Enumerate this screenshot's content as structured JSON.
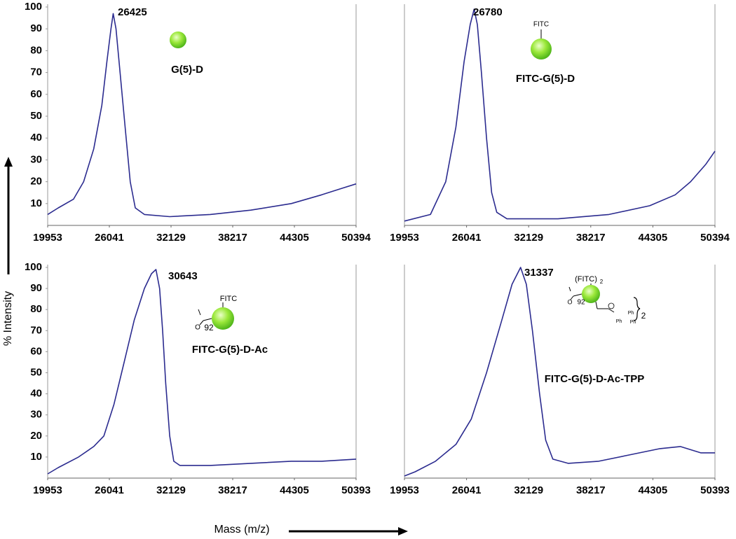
{
  "xlabel": "Mass (m/z)",
  "ylabel": "% Intensity",
  "chart_data": [
    {
      "type": "line",
      "annotation": "26425",
      "label": "G(5)-D",
      "icon_labels": [],
      "xlim": [
        19953,
        50394
      ],
      "xticks": [
        19953,
        26041,
        32129,
        38217,
        44305,
        50394
      ],
      "ylim": [
        0,
        100
      ],
      "yticks": [
        10,
        20,
        30,
        40,
        50,
        60,
        70,
        80,
        90,
        100
      ],
      "series": [
        {
          "color": "#2b2b8f",
          "x": [
            19953,
            21000,
            22500,
            23500,
            24500,
            25300,
            25800,
            26200,
            26425,
            26700,
            27100,
            27600,
            28100,
            28600,
            29500,
            32000,
            36000,
            40000,
            44000,
            47000,
            49000,
            50394
          ],
          "values": [
            5,
            8,
            12,
            20,
            35,
            55,
            75,
            90,
            97,
            90,
            70,
            45,
            20,
            8,
            5,
            4,
            5,
            7,
            10,
            14,
            17,
            19
          ]
        }
      ]
    },
    {
      "type": "line",
      "annotation": "26780",
      "label": "FITC-G(5)-D",
      "icon_labels": [
        "FITC"
      ],
      "xlim": [
        19953,
        50394
      ],
      "xticks": [
        19953,
        26041,
        32129,
        38217,
        44305,
        50394
      ],
      "ylim": [
        0,
        100
      ],
      "series": [
        {
          "color": "#2b2b8f",
          "x": [
            19953,
            22500,
            24000,
            25000,
            25800,
            26400,
            26780,
            27100,
            27500,
            28000,
            28500,
            29000,
            30000,
            35000,
            40000,
            44000,
            46500,
            48000,
            49500,
            50394
          ],
          "values": [
            2,
            5,
            20,
            45,
            75,
            92,
            99,
            92,
            70,
            40,
            15,
            6,
            3,
            3,
            5,
            9,
            14,
            20,
            28,
            34
          ]
        }
      ]
    },
    {
      "type": "line",
      "annotation": "30643",
      "label": "FITC-G(5)-D-Ac",
      "icon_labels": [
        "FITC",
        "O",
        "92"
      ],
      "xlim": [
        19953,
        50393
      ],
      "xticks": [
        19953,
        26041,
        32129,
        38217,
        44305,
        50393
      ],
      "ylim": [
        0,
        100
      ],
      "yticks": [
        10,
        20,
        30,
        40,
        50,
        60,
        70,
        80,
        90,
        100
      ],
      "series": [
        {
          "color": "#2b2b8f",
          "x": [
            19953,
            21000,
            23000,
            24500,
            25500,
            26500,
            27500,
            28500,
            29500,
            30200,
            30643,
            31000,
            31300,
            31600,
            32000,
            32400,
            33000,
            36000,
            40000,
            44000,
            47000,
            50393
          ],
          "values": [
            2,
            5,
            10,
            15,
            20,
            35,
            55,
            75,
            90,
            97,
            99,
            90,
            70,
            45,
            20,
            8,
            6,
            6,
            7,
            8,
            8,
            9
          ]
        }
      ]
    },
    {
      "type": "line",
      "annotation": "31337",
      "label": "FITC-G(5)-D-Ac-TPP",
      "icon_labels": [
        "(FITC)",
        "2",
        "O",
        "92",
        "Ph",
        "Ph",
        "Ph",
        "2"
      ],
      "xlim": [
        19953,
        50393
      ],
      "xticks": [
        19953,
        26041,
        32129,
        38217,
        44305,
        50393
      ],
      "ylim": [
        0,
        100
      ],
      "series": [
        {
          "color": "#2b2b8f",
          "x": [
            19953,
            21000,
            23000,
            25000,
            26500,
            28000,
            29500,
            30500,
            31337,
            31900,
            32500,
            33200,
            33800,
            34500,
            36000,
            39000,
            42000,
            45000,
            47000,
            49000,
            50393
          ],
          "values": [
            1,
            3,
            8,
            16,
            28,
            50,
            75,
            92,
            100,
            92,
            70,
            40,
            18,
            9,
            7,
            8,
            11,
            14,
            15,
            12,
            12
          ]
        }
      ]
    }
  ]
}
